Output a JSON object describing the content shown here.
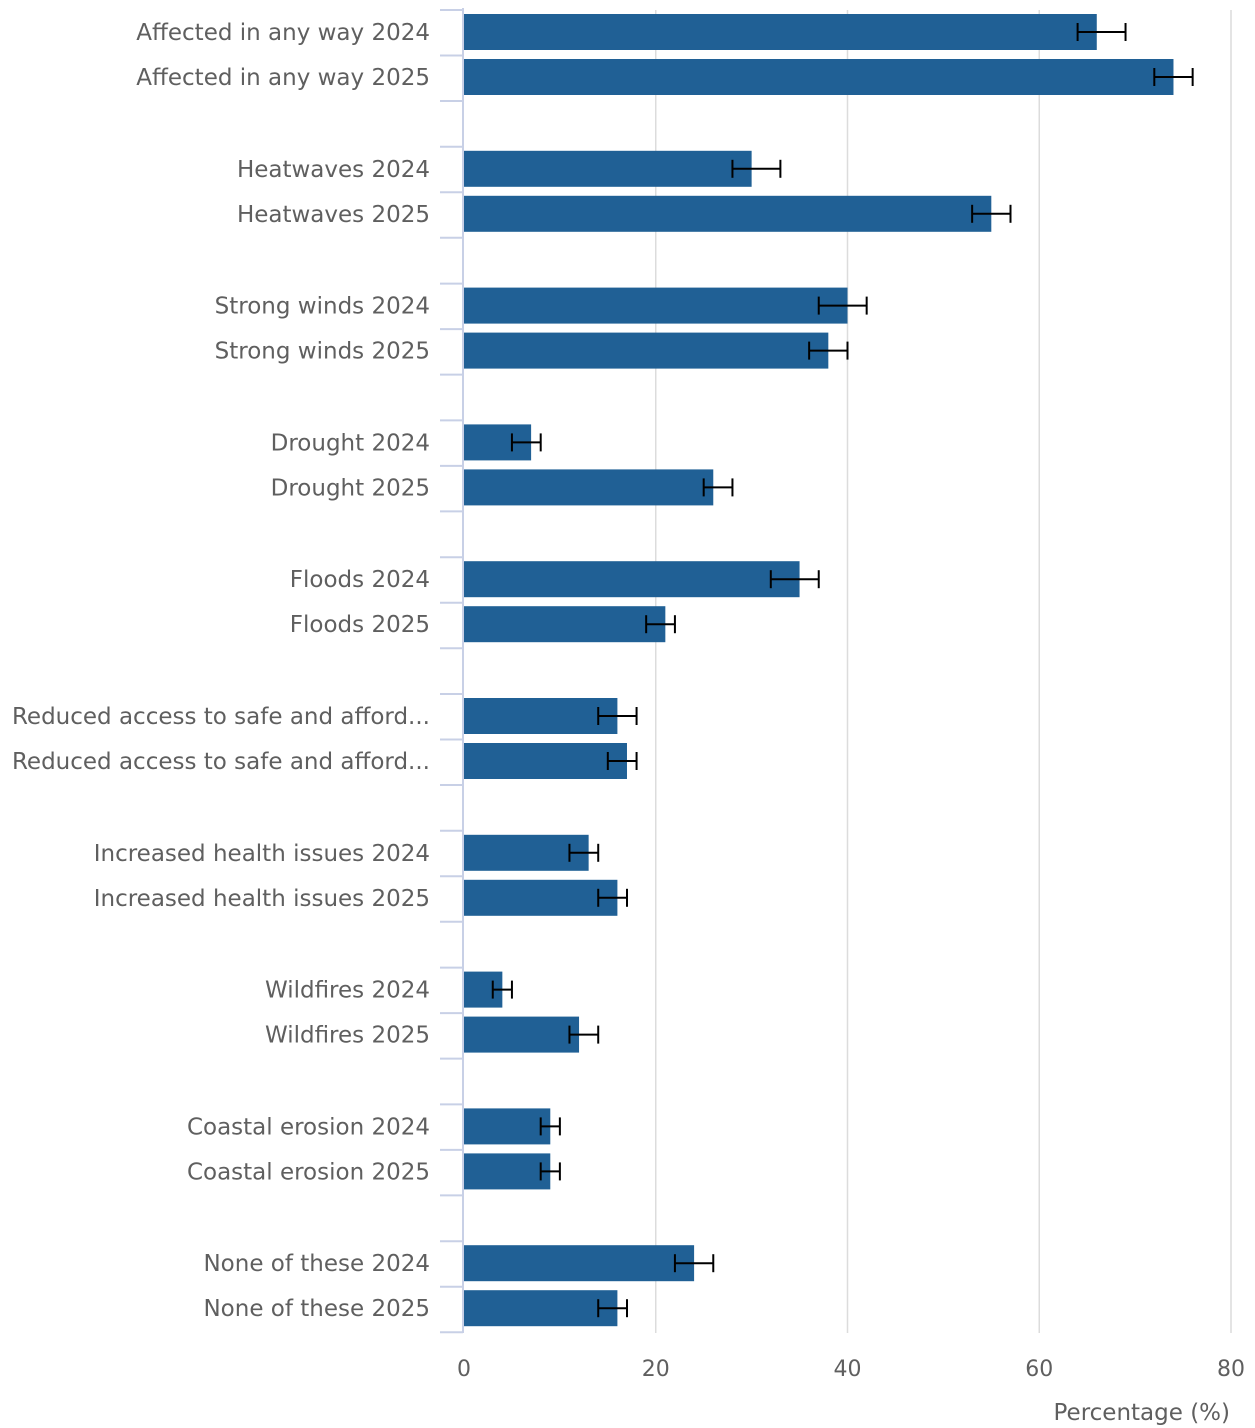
{
  "chart_data": {
    "type": "bar",
    "orientation": "horizontal",
    "categories": [
      "Affected in any way 2024",
      "Affected in any way 2025",
      "Heatwaves 2024",
      "Heatwaves 2025",
      "Strong winds 2024",
      "Strong winds 2025",
      "Drought 2024",
      "Drought 2025",
      "Floods 2024",
      "Floods 2025",
      "Reduced access to safe and afford...",
      "Reduced access to safe and afford...",
      "Increased health issues 2024",
      "Increased health issues 2025",
      "Wildfires 2024",
      "Wildfires 2025",
      "Coastal erosion 2024",
      "Coastal erosion 2025",
      "None of these 2024",
      "None of these 2025"
    ],
    "values": [
      66,
      74,
      30,
      55,
      40,
      38,
      7,
      26,
      35,
      21,
      16,
      17,
      13,
      16,
      4,
      12,
      9,
      9,
      24,
      16
    ],
    "error_low": [
      64,
      72,
      28,
      53,
      37,
      36,
      5,
      25,
      32,
      19,
      14,
      15,
      11,
      14,
      3,
      11,
      8,
      8,
      22,
      14
    ],
    "error_high": [
      69,
      76,
      33,
      57,
      42,
      40,
      8,
      28,
      37,
      22,
      18,
      18,
      14,
      17,
      5,
      14,
      10,
      10,
      26,
      17
    ],
    "xlabel": "Percentage (%)",
    "ylabel": "",
    "xlim": [
      0,
      80
    ],
    "xticks": [
      "0",
      "20",
      "40",
      "60",
      "80"
    ],
    "grid": "vertical",
    "bar_color": "#206095",
    "gridline_color": "#dcdcdc",
    "axis_color": "#c8d0e6",
    "errorbar_color": "#000000"
  }
}
